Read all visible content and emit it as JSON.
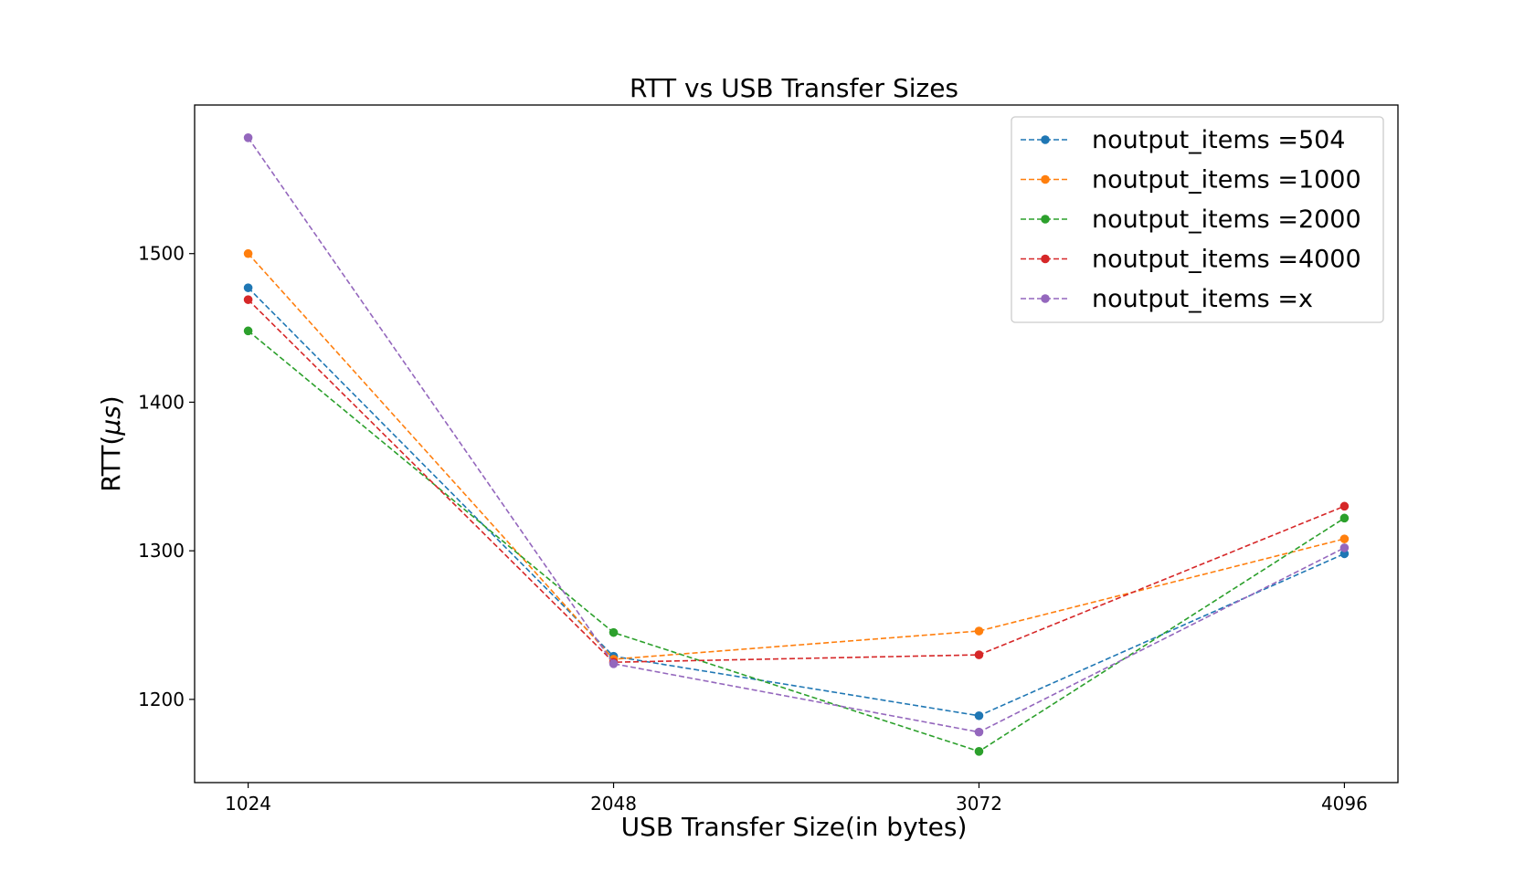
{
  "chart_data": {
    "type": "line",
    "title": "RTT vs USB Transfer Sizes",
    "xlabel": "USB Transfer Size(in bytes)",
    "ylabel_main": "RTT(",
    "ylabel_mu": "μs",
    "ylabel_close": ")",
    "x": [
      1024,
      2048,
      3072,
      4096
    ],
    "x_tick_labels": [
      "1024",
      "2048",
      "3072",
      "4096"
    ],
    "y_ticks": [
      1200,
      1300,
      1400,
      1500
    ],
    "y_tick_labels": [
      "1200",
      "1300",
      "1400",
      "1500"
    ],
    "xlim": [
      874,
      4246
    ],
    "ylim": [
      1144,
      1600
    ],
    "grid": false,
    "legend_position": "top-right",
    "line_style": "dashed",
    "marker": "circle",
    "series": [
      {
        "name": "noutput_items =504",
        "color": "#1f77b4",
        "values": [
          1477,
          1229,
          1189,
          1298
        ]
      },
      {
        "name": "noutput_items =1000",
        "color": "#ff7f0e",
        "values": [
          1500,
          1227,
          1246,
          1308
        ]
      },
      {
        "name": "noutput_items =2000",
        "color": "#2ca02c",
        "values": [
          1448,
          1245,
          1165,
          1322
        ]
      },
      {
        "name": "noutput_items =4000",
        "color": "#d62728",
        "values": [
          1469,
          1225,
          1230,
          1330
        ]
      },
      {
        "name": "noutput_items =x",
        "color": "#9467bd",
        "values": [
          1578,
          1224,
          1178,
          1302
        ]
      }
    ]
  }
}
